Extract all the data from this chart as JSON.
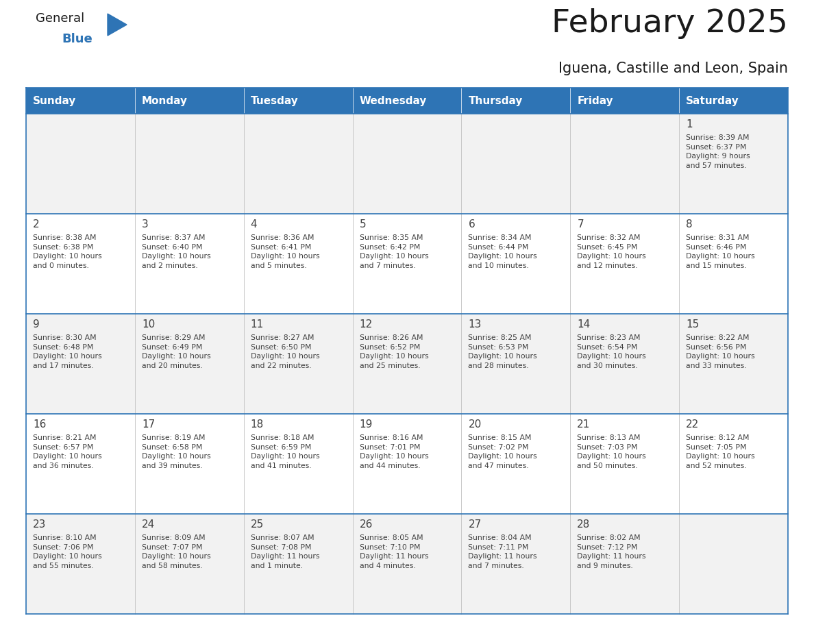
{
  "title": "February 2025",
  "subtitle": "Iguena, Castille and Leon, Spain",
  "header_color": "#2e74b5",
  "header_text_color": "#ffffff",
  "cell_bg_odd": "#f2f2f2",
  "cell_bg_even": "#ffffff",
  "border_color": "#2e74b5",
  "separator_color": "#c0c0c0",
  "text_color": "#404040",
  "days_of_week": [
    "Sunday",
    "Monday",
    "Tuesday",
    "Wednesday",
    "Thursday",
    "Friday",
    "Saturday"
  ],
  "logo_color1": "#1a1a1a",
  "logo_color2": "#2e74b5",
  "weeks": [
    [
      {
        "day": "",
        "info": ""
      },
      {
        "day": "",
        "info": ""
      },
      {
        "day": "",
        "info": ""
      },
      {
        "day": "",
        "info": ""
      },
      {
        "day": "",
        "info": ""
      },
      {
        "day": "",
        "info": ""
      },
      {
        "day": "1",
        "info": "Sunrise: 8:39 AM\nSunset: 6:37 PM\nDaylight: 9 hours\nand 57 minutes."
      }
    ],
    [
      {
        "day": "2",
        "info": "Sunrise: 8:38 AM\nSunset: 6:38 PM\nDaylight: 10 hours\nand 0 minutes."
      },
      {
        "day": "3",
        "info": "Sunrise: 8:37 AM\nSunset: 6:40 PM\nDaylight: 10 hours\nand 2 minutes."
      },
      {
        "day": "4",
        "info": "Sunrise: 8:36 AM\nSunset: 6:41 PM\nDaylight: 10 hours\nand 5 minutes."
      },
      {
        "day": "5",
        "info": "Sunrise: 8:35 AM\nSunset: 6:42 PM\nDaylight: 10 hours\nand 7 minutes."
      },
      {
        "day": "6",
        "info": "Sunrise: 8:34 AM\nSunset: 6:44 PM\nDaylight: 10 hours\nand 10 minutes."
      },
      {
        "day": "7",
        "info": "Sunrise: 8:32 AM\nSunset: 6:45 PM\nDaylight: 10 hours\nand 12 minutes."
      },
      {
        "day": "8",
        "info": "Sunrise: 8:31 AM\nSunset: 6:46 PM\nDaylight: 10 hours\nand 15 minutes."
      }
    ],
    [
      {
        "day": "9",
        "info": "Sunrise: 8:30 AM\nSunset: 6:48 PM\nDaylight: 10 hours\nand 17 minutes."
      },
      {
        "day": "10",
        "info": "Sunrise: 8:29 AM\nSunset: 6:49 PM\nDaylight: 10 hours\nand 20 minutes."
      },
      {
        "day": "11",
        "info": "Sunrise: 8:27 AM\nSunset: 6:50 PM\nDaylight: 10 hours\nand 22 minutes."
      },
      {
        "day": "12",
        "info": "Sunrise: 8:26 AM\nSunset: 6:52 PM\nDaylight: 10 hours\nand 25 minutes."
      },
      {
        "day": "13",
        "info": "Sunrise: 8:25 AM\nSunset: 6:53 PM\nDaylight: 10 hours\nand 28 minutes."
      },
      {
        "day": "14",
        "info": "Sunrise: 8:23 AM\nSunset: 6:54 PM\nDaylight: 10 hours\nand 30 minutes."
      },
      {
        "day": "15",
        "info": "Sunrise: 8:22 AM\nSunset: 6:56 PM\nDaylight: 10 hours\nand 33 minutes."
      }
    ],
    [
      {
        "day": "16",
        "info": "Sunrise: 8:21 AM\nSunset: 6:57 PM\nDaylight: 10 hours\nand 36 minutes."
      },
      {
        "day": "17",
        "info": "Sunrise: 8:19 AM\nSunset: 6:58 PM\nDaylight: 10 hours\nand 39 minutes."
      },
      {
        "day": "18",
        "info": "Sunrise: 8:18 AM\nSunset: 6:59 PM\nDaylight: 10 hours\nand 41 minutes."
      },
      {
        "day": "19",
        "info": "Sunrise: 8:16 AM\nSunset: 7:01 PM\nDaylight: 10 hours\nand 44 minutes."
      },
      {
        "day": "20",
        "info": "Sunrise: 8:15 AM\nSunset: 7:02 PM\nDaylight: 10 hours\nand 47 minutes."
      },
      {
        "day": "21",
        "info": "Sunrise: 8:13 AM\nSunset: 7:03 PM\nDaylight: 10 hours\nand 50 minutes."
      },
      {
        "day": "22",
        "info": "Sunrise: 8:12 AM\nSunset: 7:05 PM\nDaylight: 10 hours\nand 52 minutes."
      }
    ],
    [
      {
        "day": "23",
        "info": "Sunrise: 8:10 AM\nSunset: 7:06 PM\nDaylight: 10 hours\nand 55 minutes."
      },
      {
        "day": "24",
        "info": "Sunrise: 8:09 AM\nSunset: 7:07 PM\nDaylight: 10 hours\nand 58 minutes."
      },
      {
        "day": "25",
        "info": "Sunrise: 8:07 AM\nSunset: 7:08 PM\nDaylight: 11 hours\nand 1 minute."
      },
      {
        "day": "26",
        "info": "Sunrise: 8:05 AM\nSunset: 7:10 PM\nDaylight: 11 hours\nand 4 minutes."
      },
      {
        "day": "27",
        "info": "Sunrise: 8:04 AM\nSunset: 7:11 PM\nDaylight: 11 hours\nand 7 minutes."
      },
      {
        "day": "28",
        "info": "Sunrise: 8:02 AM\nSunset: 7:12 PM\nDaylight: 11 hours\nand 9 minutes."
      },
      {
        "day": "",
        "info": ""
      }
    ]
  ]
}
